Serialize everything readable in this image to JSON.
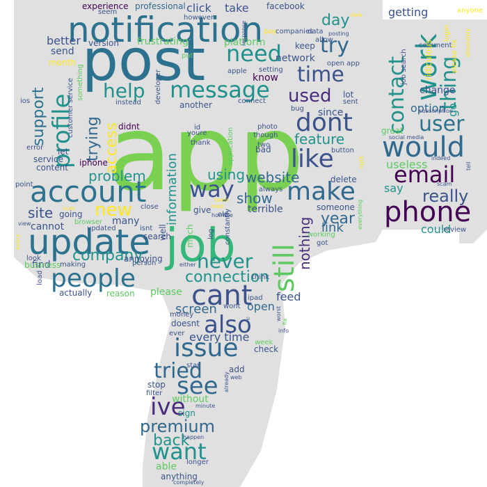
{
  "palette": {
    "background": "#ffffff",
    "shape_fill": "#e0e0e0",
    "viridis": [
      "#440154",
      "#472d7b",
      "#3b528b",
      "#2c728e",
      "#21918c",
      "#28ae80",
      "#5ec962",
      "#addc30",
      "#fde725"
    ]
  },
  "words": [
    {
      "text": "app",
      "color": "#7ad151"
    },
    {
      "text": "post",
      "color": "#2c728e"
    },
    {
      "text": "job",
      "color": "#35b779"
    },
    {
      "text": "notification",
      "color": "#2c728e"
    },
    {
      "text": "update",
      "color": "#2c728e"
    },
    {
      "text": "account",
      "color": "#2c728e"
    },
    {
      "text": "phone",
      "color": "#440154"
    },
    {
      "text": "people",
      "color": "#2c728e"
    },
    {
      "text": "cant",
      "color": "#3b528b"
    },
    {
      "text": "also",
      "color": "#3b528b"
    },
    {
      "text": "issue",
      "color": "#31688e"
    },
    {
      "text": "work",
      "color": "#21918c"
    },
    {
      "text": "would",
      "color": "#31688e"
    },
    {
      "text": "email",
      "color": "#440154"
    },
    {
      "text": "make",
      "color": "#31688e"
    },
    {
      "text": "like",
      "color": "#3b528b"
    },
    {
      "text": "dont",
      "color": "#3b528b"
    },
    {
      "text": "time",
      "color": "#3b528b"
    },
    {
      "text": "message",
      "color": "#21918c"
    },
    {
      "text": "need",
      "color": "#21918c"
    },
    {
      "text": "profile",
      "color": "#21918c"
    },
    {
      "text": "still",
      "color": "#5ec962"
    },
    {
      "text": "see",
      "color": "#31688e"
    },
    {
      "text": "ive",
      "color": "#472d7b"
    },
    {
      "text": "tried",
      "color": "#31688e"
    },
    {
      "text": "want",
      "color": "#21918c"
    },
    {
      "text": "way",
      "color": "#3b528b"
    },
    {
      "text": "new",
      "color": "#fde725"
    },
    {
      "text": "help",
      "color": "#21918c"
    },
    {
      "text": "try",
      "color": "#31688e"
    },
    {
      "text": "contact",
      "color": "#21918c"
    },
    {
      "text": "user",
      "color": "#2c728e"
    },
    {
      "text": "thing",
      "color": "#21918c"
    },
    {
      "text": "never",
      "color": "#21918c"
    },
    {
      "text": "used",
      "color": "#472d7b"
    },
    {
      "text": "really",
      "color": "#3b528b"
    },
    {
      "text": "premium",
      "color": "#31688e"
    },
    {
      "text": "back",
      "color": "#21918c"
    },
    {
      "text": "website",
      "color": "#31688e"
    },
    {
      "text": "connection",
      "color": "#21918c"
    },
    {
      "text": "show",
      "color": "#31688e"
    },
    {
      "text": "feature",
      "color": "#21918c"
    },
    {
      "text": "company",
      "color": "#21918c"
    },
    {
      "text": "problem",
      "color": "#21918c"
    },
    {
      "text": "using",
      "color": "#21918c"
    },
    {
      "text": "information",
      "color": "#21918c"
    },
    {
      "text": "trying",
      "color": "#31688e"
    },
    {
      "text": "access",
      "color": "#fde725"
    },
    {
      "text": "support",
      "color": "#2c728e"
    },
    {
      "text": "nothing",
      "color": "#472d7b"
    },
    {
      "text": "year",
      "color": "#31688e"
    },
    {
      "text": "day",
      "color": "#21918c"
    },
    {
      "text": "site",
      "color": "#3b528b"
    },
    {
      "text": "every time",
      "color": "#3b528b"
    },
    {
      "text": "screen",
      "color": "#31688e"
    },
    {
      "text": "open",
      "color": "#31688e"
    },
    {
      "text": "feed",
      "color": "#3b528b"
    },
    {
      "text": "without",
      "color": "#5ec962"
    },
    {
      "text": "able",
      "color": "#5ec962"
    },
    {
      "text": "link",
      "color": "#31688e"
    },
    {
      "text": "say",
      "color": "#21918c"
    },
    {
      "text": "could",
      "color": "#21918c"
    },
    {
      "text": "useless",
      "color": "#5ec962"
    },
    {
      "text": "option",
      "color": "#31688e"
    },
    {
      "text": "go",
      "color": "#21918c"
    },
    {
      "text": "getting",
      "color": "#3b528b"
    },
    {
      "text": "change",
      "color": "#3b528b"
    },
    {
      "text": "experience",
      "color": "#440154"
    },
    {
      "text": "professional",
      "color": "#31688e"
    },
    {
      "text": "click",
      "color": "#3b528b"
    },
    {
      "text": "take",
      "color": "#3b528b"
    },
    {
      "text": "facebook",
      "color": "#3b528b"
    },
    {
      "text": "seem",
      "color": "#3b528b"
    },
    {
      "text": "however",
      "color": "#3b528b"
    },
    {
      "text": "better",
      "color": "#3b528b"
    },
    {
      "text": "send",
      "color": "#3b528b"
    },
    {
      "text": "version",
      "color": "#3b528b"
    },
    {
      "text": "frustrating",
      "color": "#5ec962"
    },
    {
      "text": "platform",
      "color": "#5ec962"
    },
    {
      "text": "network",
      "color": "#3b528b"
    },
    {
      "text": "keep",
      "color": "#3b528b"
    },
    {
      "text": "know",
      "color": "#440154"
    },
    {
      "text": "since",
      "color": "#3b528b"
    },
    {
      "text": "cannot",
      "color": "#3b528b"
    },
    {
      "text": "find",
      "color": "#3b528b"
    },
    {
      "text": "many",
      "color": "#3b528b"
    },
    {
      "text": "please",
      "color": "#5ec962"
    },
    {
      "text": "search",
      "color": "#3b528b"
    },
    {
      "text": "actually",
      "color": "#3b528b"
    },
    {
      "text": "reason",
      "color": "#5ec962"
    },
    {
      "text": "annoying",
      "color": "#3b528b"
    },
    {
      "text": "doesnt",
      "color": "#3b528b"
    },
    {
      "text": "sign",
      "color": "#21918c"
    },
    {
      "text": "stop",
      "color": "#3b528b"
    },
    {
      "text": "filter",
      "color": "#3b528b"
    },
    {
      "text": "anything",
      "color": "#3b528b"
    },
    {
      "text": "longer",
      "color": "#3b528b"
    },
    {
      "text": "add",
      "color": "#3b528b"
    },
    {
      "text": "star",
      "color": "#3b528b"
    },
    {
      "text": "check",
      "color": "#3b528b"
    },
    {
      "text": "week",
      "color": "#5ec962"
    },
    {
      "text": "wont",
      "color": "#3b528b"
    },
    {
      "text": "think",
      "color": "#3b528b"
    },
    {
      "text": "ipad",
      "color": "#3b528b"
    },
    {
      "text": "money",
      "color": "#3b528b"
    },
    {
      "text": "ever",
      "color": "#3b528b"
    },
    {
      "text": "well",
      "color": "#3b528b"
    },
    {
      "text": "much",
      "color": "#5ec962"
    },
    {
      "text": "give",
      "color": "#3b528b"
    },
    {
      "text": "old",
      "color": "#3b528b"
    },
    {
      "text": "terrible",
      "color": "#3b528b"
    },
    {
      "text": "someone",
      "color": "#3b528b"
    },
    {
      "text": "delete",
      "color": "#3b528b"
    },
    {
      "text": "two",
      "color": "#3b528b"
    },
    {
      "text": "bad",
      "color": "#3b528b"
    },
    {
      "text": "photo",
      "color": "#3b528b"
    },
    {
      "text": "though",
      "color": "#3b528b"
    },
    {
      "text": "button",
      "color": "#3b528b"
    },
    {
      "text": "always",
      "color": "#3b528b"
    },
    {
      "text": "application",
      "color": "#5ec962"
    },
    {
      "text": "another",
      "color": "#3b528b"
    },
    {
      "text": "connect",
      "color": "#3b528b"
    },
    {
      "text": "bug",
      "color": "#3b528b"
    },
    {
      "text": "sent",
      "color": "#3b528b"
    },
    {
      "text": "lot",
      "color": "#3b528b"
    },
    {
      "text": "didnt",
      "color": "#440154"
    },
    {
      "text": "youre",
      "color": "#3b528b"
    },
    {
      "text": "id",
      "color": "#3b528b"
    },
    {
      "text": "thank",
      "color": "#3b528b"
    },
    {
      "text": "iphone",
      "color": "#440154"
    },
    {
      "text": "instead",
      "color": "#3b528b"
    },
    {
      "text": "load",
      "color": "#3b528b"
    },
    {
      "text": "look",
      "color": "#3b528b"
    },
    {
      "text": "business",
      "color": "#5ec962"
    },
    {
      "text": "going",
      "color": "#3b528b"
    },
    {
      "text": "updated",
      "color": "#3b528b"
    },
    {
      "text": "close",
      "color": "#3b528b"
    },
    {
      "text": "isnt",
      "color": "#3b528b"
    },
    {
      "text": "browser",
      "color": "#5ec962"
    },
    {
      "text": "person",
      "color": "#3b528b"
    },
    {
      "text": "making",
      "color": "#3b528b"
    },
    {
      "text": "content",
      "color": "#3b528b"
    },
    {
      "text": "service",
      "color": "#3b528b"
    },
    {
      "text": "let",
      "color": "#3b528b"
    },
    {
      "text": "point",
      "color": "#3b528b"
    },
    {
      "text": "error",
      "color": "#3b528b"
    },
    {
      "text": "customer service",
      "color": "#3b528b"
    },
    {
      "text": "ios",
      "color": "#3b528b"
    },
    {
      "text": "month",
      "color": "#fde725"
    },
    {
      "text": "something",
      "color": "#5ec962"
    },
    {
      "text": "developer",
      "color": "#3b528b"
    },
    {
      "text": "put",
      "color": "#5ec962"
    },
    {
      "text": "apple",
      "color": "#3b528b"
    },
    {
      "text": "setting",
      "color": "#3b528b"
    },
    {
      "text": "open app",
      "color": "#3b528b"
    },
    {
      "text": "posting",
      "color": "#3b528b"
    },
    {
      "text": "pay",
      "color": "#fde725"
    },
    {
      "text": "companies",
      "color": "#3b528b"
    },
    {
      "text": "data",
      "color": "#3b528b"
    },
    {
      "text": "allow",
      "color": "#3b528b"
    },
    {
      "text": "slow",
      "color": "#fde725"
    },
    {
      "text": "response",
      "color": "#3b528b"
    },
    {
      "text": "comment",
      "color": "#3b528b"
    },
    {
      "text": "job search",
      "color": "#3b528b"
    },
    {
      "text": "ridiculous",
      "color": "#fde725"
    },
    {
      "text": "login",
      "color": "#fde725"
    },
    {
      "text": "anyone",
      "color": "#fde725"
    },
    {
      "text": "absolutely",
      "color": "#fde725"
    },
    {
      "text": "please fix",
      "color": "#fde725"
    },
    {
      "text": "subscription",
      "color": "#3b528b"
    },
    {
      "text": "great",
      "color": "#5ec962"
    },
    {
      "text": "social media",
      "color": "#3b528b"
    },
    {
      "text": "indeed",
      "color": "#3b528b"
    },
    {
      "text": "scam",
      "color": "#3b528b"
    },
    {
      "text": "tell",
      "color": "#3b528b"
    },
    {
      "text": "right",
      "color": "#fde725"
    },
    {
      "text": "review",
      "color": "#3b528b"
    },
    {
      "text": "everything",
      "color": "#5ec962"
    },
    {
      "text": "working",
      "color": "#5ec962"
    },
    {
      "text": "got",
      "color": "#3b528b"
    },
    {
      "text": "either",
      "color": "#3b528b"
    },
    {
      "text": "worst",
      "color": "#3b528b"
    },
    {
      "text": "fix",
      "color": "#5ec962"
    },
    {
      "text": "info",
      "color": "#3b528b"
    },
    {
      "text": "already",
      "color": "#3b528b"
    },
    {
      "text": "web",
      "color": "#3b528b"
    },
    {
      "text": "minute",
      "color": "#3b528b"
    },
    {
      "text": "happen",
      "color": "#3b528b"
    },
    {
      "text": "completely",
      "color": "#3b528b"
    },
    {
      "text": "horrible",
      "color": "#3b528b"
    },
    {
      "text": "log",
      "color": "#3b528b"
    },
    {
      "text": "constantly",
      "color": "#3b528b"
    },
    {
      "text": "read",
      "color": "#fde725"
    },
    {
      "text": "sure",
      "color": "#fde725"
    },
    {
      "text": "view",
      "color": "#3b528b"
    },
    {
      "text": "every",
      "color": "#fde725"
    },
    {
      "text": "team",
      "color": "#fde725"
    },
    {
      "text": "u",
      "color": "#3b528b"
    }
  ]
}
